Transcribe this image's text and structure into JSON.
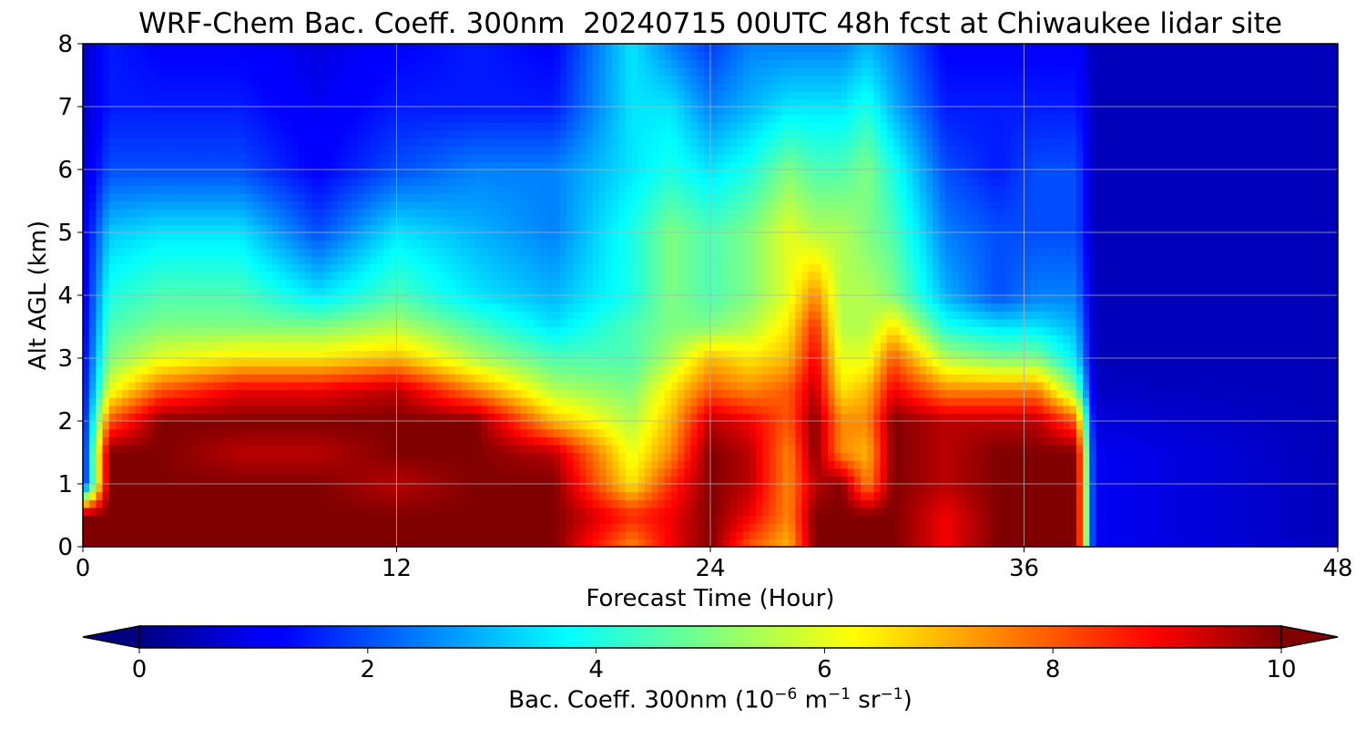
{
  "chart_data": {
    "type": "heatmap",
    "title": "WRF-Chem Bac. Coeff. 300nm  20240715 00UTC 48h fcst at Chiwaukee lidar site",
    "xlabel": "Forecast Time (Hour)",
    "ylabel": "Alt AGL (km)",
    "xlim": [
      0,
      48
    ],
    "ylim": [
      0,
      8
    ],
    "xticks": [
      "0",
      "12",
      "24",
      "36",
      "48"
    ],
    "yticks": [
      "0",
      "1",
      "2",
      "3",
      "4",
      "5",
      "6",
      "7",
      "8"
    ],
    "grid": true,
    "colormap": "jet",
    "colorbar": {
      "label_main": "Bac. Coeff. 300nm  (10",
      "label_exp1": "−6",
      "label_mid": " m",
      "label_exp2": "−1",
      "label_mid2": " sr",
      "label_exp3": "−1",
      "label_end": ")",
      "range": [
        0,
        10
      ],
      "ticks": [
        "0",
        "2",
        "4",
        "6",
        "8",
        "10"
      ],
      "extend": "both"
    },
    "x": [
      0,
      1,
      3,
      6,
      9,
      12,
      15,
      18,
      21,
      22.5,
      24,
      25.5,
      27,
      28,
      29,
      30,
      31,
      33,
      35,
      36.5,
      38,
      38.7,
      48
    ],
    "y": [
      0,
      0.5,
      1,
      1.5,
      2,
      2.5,
      3,
      3.5,
      4,
      5,
      6,
      7,
      8
    ],
    "z": [
      [
        10,
        10,
        10,
        10,
        10,
        10,
        10,
        10,
        7.5,
        9,
        10,
        8,
        7,
        10,
        10,
        10,
        10,
        9,
        10,
        10,
        10,
        1,
        0.5
      ],
      [
        10,
        10,
        10,
        10,
        10,
        10,
        10,
        10,
        8.5,
        9,
        10,
        9,
        7.5,
        10,
        10,
        10,
        10,
        9,
        10,
        10,
        10,
        1,
        0.5
      ],
      [
        1,
        10,
        10,
        10,
        10,
        9.5,
        10,
        10,
        6.5,
        8.5,
        10,
        9.5,
        7.5,
        9.5,
        10,
        7.5,
        10,
        9.5,
        10,
        10,
        10,
        1,
        0.5
      ],
      [
        1,
        10,
        10,
        9.5,
        9.5,
        10,
        10,
        9.5,
        6,
        7.5,
        10,
        9.5,
        7.5,
        10,
        7.5,
        7,
        10,
        9.5,
        10,
        10,
        10,
        1,
        0.5
      ],
      [
        1,
        8,
        10,
        10,
        10,
        10,
        10,
        7,
        5.5,
        7,
        9.5,
        9,
        8,
        10,
        7.5,
        7.5,
        10,
        9.5,
        9.5,
        9.5,
        8,
        0.8,
        0.5
      ],
      [
        1,
        6,
        8,
        9,
        9,
        9.5,
        7.5,
        5.5,
        5,
        6.5,
        8,
        7.5,
        8,
        9.5,
        6.5,
        7,
        9,
        7.5,
        7.5,
        7.5,
        5,
        0.6,
        0.5
      ],
      [
        1,
        5,
        6,
        6.5,
        6.5,
        7,
        5.5,
        4.5,
        4.5,
        5.5,
        7,
        6.5,
        7,
        9,
        6,
        6,
        8,
        5.5,
        5,
        5,
        3.5,
        0.5,
        0.5
      ],
      [
        0.9,
        4.5,
        5,
        5,
        5,
        5.5,
        4.5,
        3.5,
        4.5,
        5,
        5,
        5.5,
        6.5,
        8.5,
        5.5,
        5.5,
        6.5,
        4,
        3.5,
        3.5,
        3,
        0.5,
        0.5
      ],
      [
        0.9,
        4,
        4.5,
        4.5,
        3.5,
        4.5,
        3.5,
        3,
        4,
        5,
        4.5,
        5,
        6,
        7.5,
        5.5,
        5.5,
        5,
        3,
        2,
        2.5,
        2.5,
        0.5,
        0.5
      ],
      [
        0.8,
        3.2,
        3.5,
        3.5,
        2,
        3.5,
        3,
        2.5,
        4,
        5,
        4.5,
        5,
        6,
        5.5,
        5.5,
        5,
        4.5,
        2.5,
        2,
        2,
        2,
        0.5,
        0.5
      ],
      [
        0.6,
        2,
        2,
        2,
        1.2,
        2,
        2.5,
        2.5,
        3.5,
        4,
        3.5,
        4,
        5,
        4.5,
        4.5,
        5,
        4,
        2,
        1.5,
        2,
        2,
        0.5,
        0.5
      ],
      [
        0.5,
        1.5,
        1.5,
        1.5,
        1,
        1.5,
        1.5,
        1.5,
        3.5,
        3.5,
        2.5,
        3,
        3.5,
        3.5,
        3.5,
        4,
        3,
        1.5,
        1.5,
        1.5,
        1.5,
        0.5,
        0.5
      ],
      [
        0.5,
        1.5,
        1.2,
        1.2,
        0.8,
        1.2,
        1.5,
        1.2,
        3.5,
        2.5,
        1.8,
        2.5,
        2.5,
        2.5,
        2.5,
        3,
        2.5,
        1.2,
        1.2,
        1.2,
        1.2,
        0.5,
        0.5
      ]
    ]
  }
}
